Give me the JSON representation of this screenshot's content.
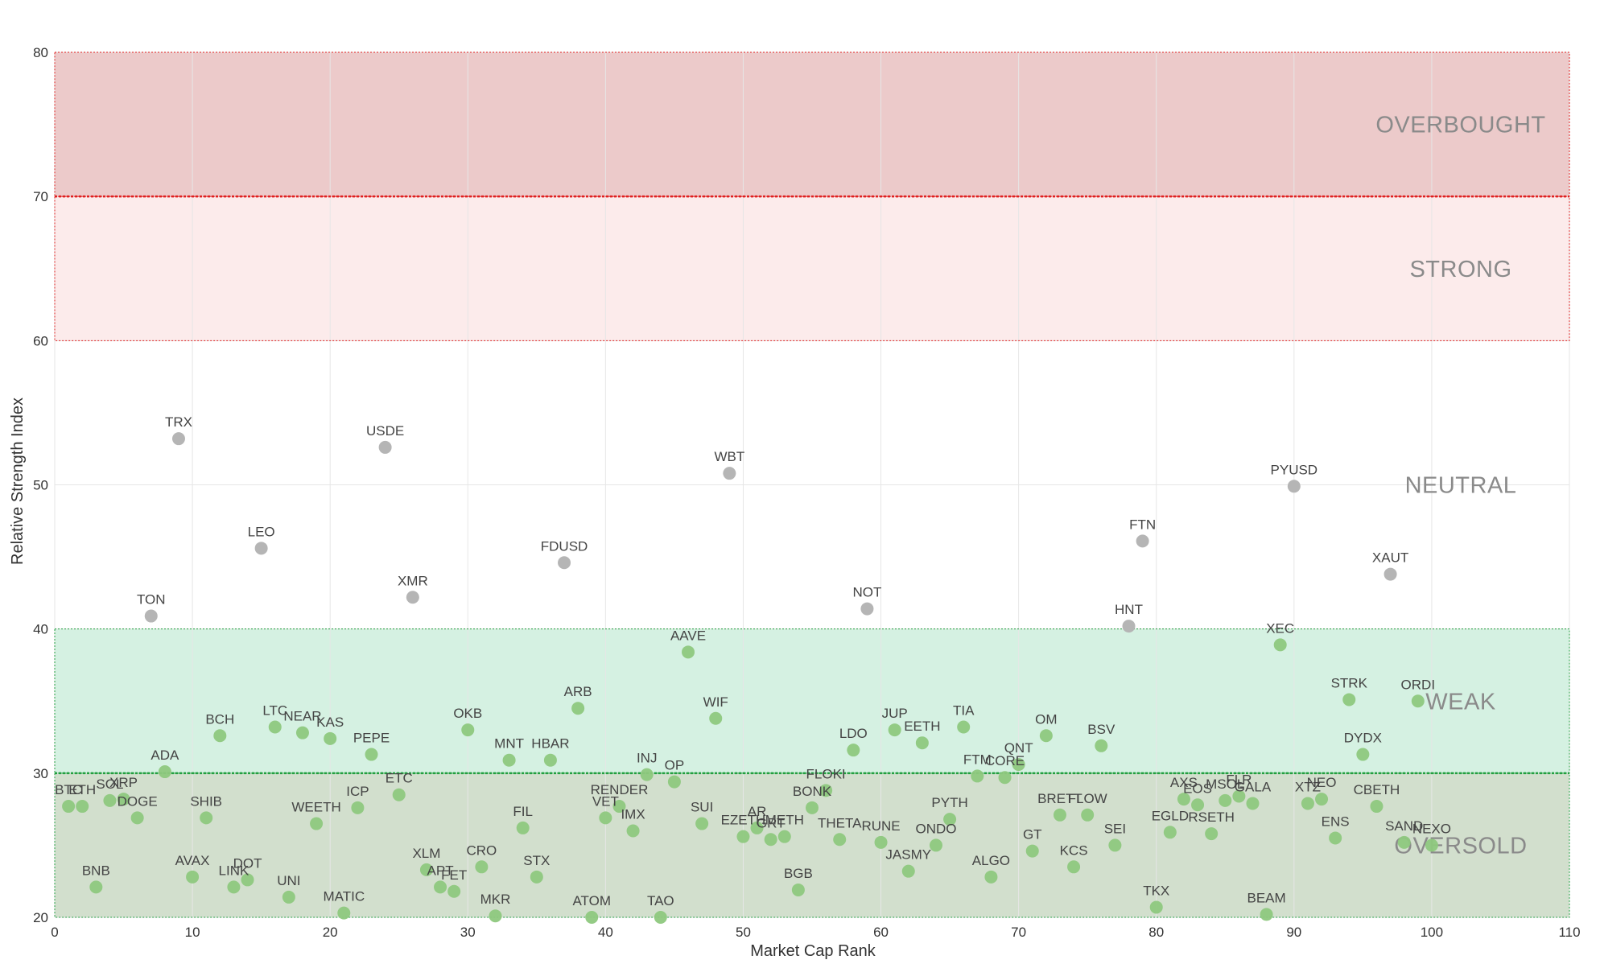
{
  "chart_data": {
    "type": "scatter",
    "title": "",
    "xlabel": "Market Cap Rank",
    "ylabel": "Relative Strength Index",
    "xlim": [
      0,
      110
    ],
    "ylim": [
      20,
      80
    ],
    "x_ticks": [
      0,
      10,
      20,
      30,
      40,
      50,
      60,
      70,
      80,
      90,
      100,
      110
    ],
    "y_ticks": [
      20,
      30,
      40,
      50,
      60,
      70,
      80
    ],
    "grid": true,
    "zones": [
      {
        "name": "OVERBOUGHT",
        "from": 70,
        "to": 80,
        "color": "#eccaca"
      },
      {
        "name": "STRONG",
        "from": 60,
        "to": 70,
        "color": "#fcebeb"
      },
      {
        "name": "NEUTRAL",
        "from": 40,
        "to": 60,
        "color": "#ffffff"
      },
      {
        "name": "WEAK",
        "from": 30,
        "to": 40,
        "color": "#d5f1e2"
      },
      {
        "name": "OVERSOLD",
        "from": 20,
        "to": 30,
        "color": "#d2dfcd"
      }
    ],
    "colors": {
      "neutral_point": "#b5b5b5",
      "zone_point": "#8ec87e",
      "red_line": "#e02020",
      "green_line": "#22a040",
      "grid": "#e6e6e6"
    },
    "points": [
      {
        "label": "BTC",
        "x": 1,
        "y": 27.7
      },
      {
        "label": "ETH",
        "x": 2,
        "y": 27.7
      },
      {
        "label": "BNB",
        "x": 3,
        "y": 22.1
      },
      {
        "label": "SOL",
        "x": 4,
        "y": 28.1
      },
      {
        "label": "XRP",
        "x": 5,
        "y": 28.2
      },
      {
        "label": "DOGE",
        "x": 6,
        "y": 26.9
      },
      {
        "label": "TON",
        "x": 7,
        "y": 40.9
      },
      {
        "label": "ADA",
        "x": 8,
        "y": 30.1
      },
      {
        "label": "TRX",
        "x": 9,
        "y": 53.2
      },
      {
        "label": "AVAX",
        "x": 10,
        "y": 22.8
      },
      {
        "label": "SHIB",
        "x": 11,
        "y": 26.9
      },
      {
        "label": "BCH",
        "x": 12,
        "y": 32.6
      },
      {
        "label": "LINK",
        "x": 13,
        "y": 22.1
      },
      {
        "label": "DOT",
        "x": 14,
        "y": 22.6
      },
      {
        "label": "LEO",
        "x": 15,
        "y": 45.6
      },
      {
        "label": "LTC",
        "x": 16,
        "y": 33.2
      },
      {
        "label": "UNI",
        "x": 17,
        "y": 21.4
      },
      {
        "label": "NEAR",
        "x": 18,
        "y": 32.8
      },
      {
        "label": "WEETH",
        "x": 19,
        "y": 26.5
      },
      {
        "label": "KAS",
        "x": 20,
        "y": 32.4
      },
      {
        "label": "MATIC",
        "x": 21,
        "y": 20.3
      },
      {
        "label": "ICP",
        "x": 22,
        "y": 27.6
      },
      {
        "label": "PEPE",
        "x": 23,
        "y": 31.3
      },
      {
        "label": "USDE",
        "x": 24,
        "y": 52.6
      },
      {
        "label": "ETC",
        "x": 25,
        "y": 28.5
      },
      {
        "label": "XMR",
        "x": 26,
        "y": 42.2
      },
      {
        "label": "XLM",
        "x": 27,
        "y": 23.3
      },
      {
        "label": "APT",
        "x": 28,
        "y": 22.1
      },
      {
        "label": "FET",
        "x": 29,
        "y": 21.8
      },
      {
        "label": "OKB",
        "x": 30,
        "y": 33.0
      },
      {
        "label": "CRO",
        "x": 31,
        "y": 23.5
      },
      {
        "label": "MKR",
        "x": 32,
        "y": 20.1
      },
      {
        "label": "MNT",
        "x": 33,
        "y": 30.9
      },
      {
        "label": "FIL",
        "x": 34,
        "y": 26.2
      },
      {
        "label": "STX",
        "x": 35,
        "y": 22.8
      },
      {
        "label": "HBAR",
        "x": 36,
        "y": 30.9
      },
      {
        "label": "FDUSD",
        "x": 37,
        "y": 44.6
      },
      {
        "label": "ARB",
        "x": 38,
        "y": 34.5
      },
      {
        "label": "ATOM",
        "x": 39,
        "y": 20.0
      },
      {
        "label": "VET",
        "x": 40,
        "y": 26.9
      },
      {
        "label": "RENDER",
        "x": 41,
        "y": 27.7
      },
      {
        "label": "IMX",
        "x": 42,
        "y": 26.0
      },
      {
        "label": "INJ",
        "x": 43,
        "y": 29.9
      },
      {
        "label": "TAO",
        "x": 44,
        "y": 20.0
      },
      {
        "label": "OP",
        "x": 45,
        "y": 29.4
      },
      {
        "label": "AAVE",
        "x": 46,
        "y": 38.4
      },
      {
        "label": "SUI",
        "x": 47,
        "y": 26.5
      },
      {
        "label": "WIF",
        "x": 48,
        "y": 33.8
      },
      {
        "label": "WBT",
        "x": 49,
        "y": 50.8
      },
      {
        "label": "EZETH",
        "x": 50,
        "y": 25.6
      },
      {
        "label": "AR",
        "x": 51,
        "y": 26.2
      },
      {
        "label": "GRT",
        "x": 52,
        "y": 25.4
      },
      {
        "label": "METH",
        "x": 53,
        "y": 25.6
      },
      {
        "label": "BGB",
        "x": 54,
        "y": 21.9
      },
      {
        "label": "BONK",
        "x": 55,
        "y": 27.6
      },
      {
        "label": "FLOKI",
        "x": 56,
        "y": 28.8
      },
      {
        "label": "THETA",
        "x": 57,
        "y": 25.4
      },
      {
        "label": "LDO",
        "x": 58,
        "y": 31.6
      },
      {
        "label": "NOT",
        "x": 59,
        "y": 41.4
      },
      {
        "label": "RUNE",
        "x": 60,
        "y": 25.2
      },
      {
        "label": "JUP",
        "x": 61,
        "y": 33.0
      },
      {
        "label": "JASMY",
        "x": 62,
        "y": 23.2
      },
      {
        "label": "EETH",
        "x": 63,
        "y": 32.1
      },
      {
        "label": "ONDO",
        "x": 64,
        "y": 25.0
      },
      {
        "label": "PYTH",
        "x": 65,
        "y": 26.8
      },
      {
        "label": "TIA",
        "x": 66,
        "y": 33.2
      },
      {
        "label": "FTM",
        "x": 67,
        "y": 29.8
      },
      {
        "label": "ALGO",
        "x": 68,
        "y": 22.8
      },
      {
        "label": "CORE",
        "x": 69,
        "y": 29.7
      },
      {
        "label": "QNT",
        "x": 70,
        "y": 30.6
      },
      {
        "label": "GT",
        "x": 71,
        "y": 24.6
      },
      {
        "label": "OM",
        "x": 72,
        "y": 32.6
      },
      {
        "label": "BRETT",
        "x": 73,
        "y": 27.1
      },
      {
        "label": "KCS",
        "x": 74,
        "y": 23.5
      },
      {
        "label": "FLOW",
        "x": 75,
        "y": 27.1
      },
      {
        "label": "BSV",
        "x": 76,
        "y": 31.9
      },
      {
        "label": "SEI",
        "x": 77,
        "y": 25.0
      },
      {
        "label": "HNT",
        "x": 78,
        "y": 40.2
      },
      {
        "label": "FTN",
        "x": 79,
        "y": 46.1
      },
      {
        "label": "TKX",
        "x": 80,
        "y": 20.7
      },
      {
        "label": "EGLD",
        "x": 81,
        "y": 25.9
      },
      {
        "label": "AXS",
        "x": 82,
        "y": 28.2
      },
      {
        "label": "EOS",
        "x": 83,
        "y": 27.8
      },
      {
        "label": "RSETH",
        "x": 84,
        "y": 25.8
      },
      {
        "label": "MSOL",
        "x": 85,
        "y": 28.1
      },
      {
        "label": "FLR",
        "x": 86,
        "y": 28.4
      },
      {
        "label": "GALA",
        "x": 87,
        "y": 27.9
      },
      {
        "label": "BEAM",
        "x": 88,
        "y": 20.2
      },
      {
        "label": "XEC",
        "x": 89,
        "y": 38.9
      },
      {
        "label": "PYUSD",
        "x": 90,
        "y": 49.9
      },
      {
        "label": "XTZ",
        "x": 91,
        "y": 27.9
      },
      {
        "label": "NEO",
        "x": 92,
        "y": 28.2
      },
      {
        "label": "ENS",
        "x": 93,
        "y": 25.5
      },
      {
        "label": "STRK",
        "x": 94,
        "y": 35.1
      },
      {
        "label": "DYDX",
        "x": 95,
        "y": 31.3
      },
      {
        "label": "CBETH",
        "x": 96,
        "y": 27.7
      },
      {
        "label": "XAUT",
        "x": 97,
        "y": 43.8
      },
      {
        "label": "SAND",
        "x": 98,
        "y": 25.2
      },
      {
        "label": "ORDI",
        "x": 99,
        "y": 35.0
      },
      {
        "label": "NEXO",
        "x": 100,
        "y": 25.0
      }
    ]
  }
}
